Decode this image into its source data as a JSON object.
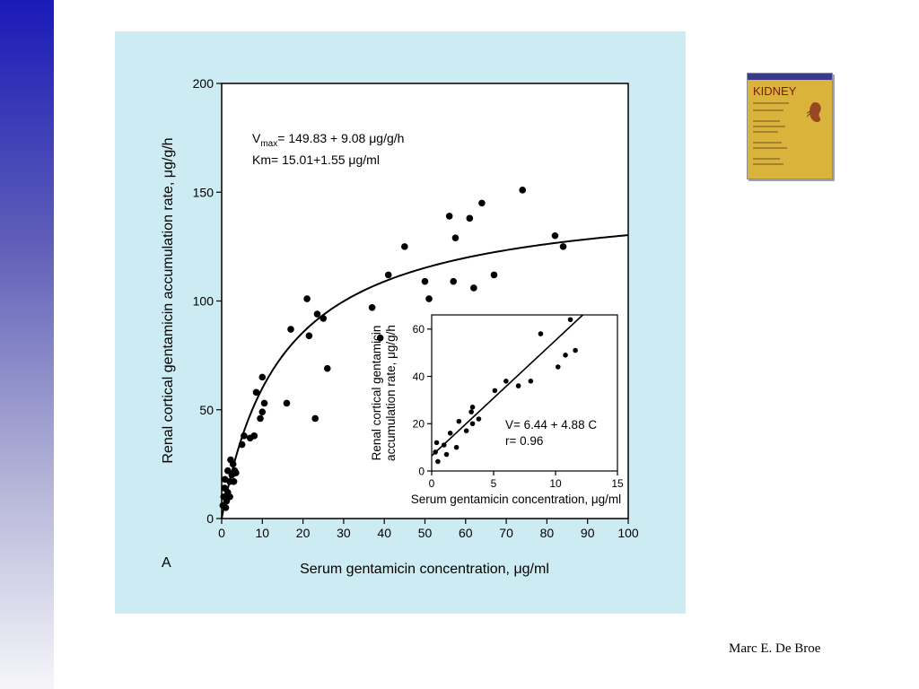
{
  "author": "Marc E. De Broe",
  "book": {
    "title": "KIDNEY",
    "icon": "book-cover-icon"
  },
  "colors": {
    "panel_bg": "#cdebf3",
    "sidebar_top": "#1a1ab8",
    "sidebar_bottom": "#f6f6fa"
  },
  "chart_data": [
    {
      "type": "scatter",
      "panel_label": "A",
      "xlabel": "Serum gentamicin concentration, μg/ml",
      "ylabel": "Renal cortical gentamicin accumulation rate, μg/g/h",
      "xlim": [
        0,
        100
      ],
      "ylim": [
        0,
        200
      ],
      "xticks": [
        "0",
        "10",
        "20",
        "30",
        "40",
        "50",
        "60",
        "70",
        "80",
        "90",
        "100"
      ],
      "yticks": [
        "0",
        "50",
        "100",
        "150",
        "200"
      ],
      "annotations": {
        "vmax_V": "V",
        "vmax_sub": "max",
        "vmax_rest": "= 149.83 + 9.08 μg/g/h",
        "km": "Km= 15.01+1.55 μg/ml"
      },
      "fit": {
        "type": "michaelis-menten",
        "vmax": 149.83,
        "km": 15.01
      },
      "grid": false,
      "points": [
        [
          0.3,
          6
        ],
        [
          0.5,
          10
        ],
        [
          0.7,
          14
        ],
        [
          0.8,
          18
        ],
        [
          1,
          5
        ],
        [
          1.2,
          8
        ],
        [
          1.5,
          12
        ],
        [
          1.5,
          22
        ],
        [
          2,
          10
        ],
        [
          2,
          17
        ],
        [
          2.2,
          27
        ],
        [
          2.5,
          20
        ],
        [
          2.8,
          25
        ],
        [
          3,
          17
        ],
        [
          3.2,
          22
        ],
        [
          3.5,
          21
        ],
        [
          5,
          34
        ],
        [
          5.5,
          38
        ],
        [
          7,
          37
        ],
        [
          8,
          38
        ],
        [
          8.5,
          58
        ],
        [
          9.5,
          46
        ],
        [
          10,
          49
        ],
        [
          10.5,
          53
        ],
        [
          10,
          65
        ],
        [
          16,
          53
        ],
        [
          17,
          87
        ],
        [
          21,
          101
        ],
        [
          21.5,
          84
        ],
        [
          23,
          46
        ],
        [
          23.5,
          94
        ],
        [
          25,
          92
        ],
        [
          26,
          69
        ],
        [
          37,
          97
        ],
        [
          39,
          83
        ],
        [
          41,
          112
        ],
        [
          45,
          125
        ],
        [
          50,
          109
        ],
        [
          51,
          101
        ],
        [
          56,
          139
        ],
        [
          57,
          109
        ],
        [
          57.5,
          129
        ],
        [
          61,
          138
        ],
        [
          62,
          106
        ],
        [
          64,
          145
        ],
        [
          67,
          112
        ],
        [
          74,
          151
        ],
        [
          82,
          130
        ],
        [
          84,
          125
        ]
      ]
    },
    {
      "type": "scatter",
      "xlabel": "Serum gentamicin concentration, μg/ml",
      "ylabel_line1": "Renal cortical gentamicin",
      "ylabel_line2": "accumulation rate, μg/g/h",
      "xlim": [
        0,
        15
      ],
      "ylim": [
        0,
        66
      ],
      "xticks": [
        "0",
        "5",
        "10",
        "15"
      ],
      "yticks": [
        "0",
        "20",
        "40",
        "60"
      ],
      "annotations": {
        "equation": "V= 6.44 + 4.88 C",
        "r": "r= 0.96"
      },
      "fit": {
        "type": "linear",
        "intercept": 6.44,
        "slope": 4.88
      },
      "grid": false,
      "points": [
        [
          0.3,
          8
        ],
        [
          0.4,
          12
        ],
        [
          0.5,
          4
        ],
        [
          1,
          11
        ],
        [
          1.2,
          7
        ],
        [
          1.5,
          16
        ],
        [
          2,
          10
        ],
        [
          2.2,
          21
        ],
        [
          2.8,
          17
        ],
        [
          3.2,
          25
        ],
        [
          3.3,
          27
        ],
        [
          3.3,
          20
        ],
        [
          3.8,
          22
        ],
        [
          5.1,
          34
        ],
        [
          6,
          38
        ],
        [
          7,
          36
        ],
        [
          8,
          38
        ],
        [
          8.8,
          58
        ],
        [
          10.2,
          44
        ],
        [
          10.8,
          49
        ],
        [
          11.2,
          64
        ],
        [
          11.6,
          51
        ]
      ]
    }
  ]
}
